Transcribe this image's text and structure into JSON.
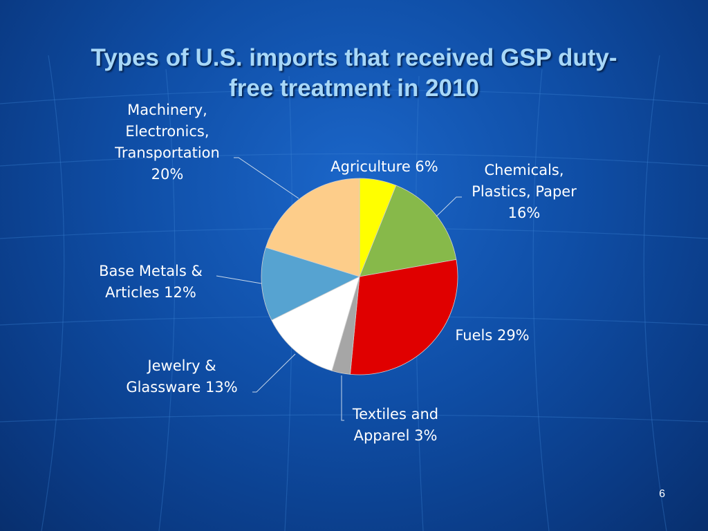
{
  "slide": {
    "title_line1": "Types of U.S. imports that received GSP duty-",
    "title_line2": "free treatment in 2010",
    "page_number": "6"
  },
  "chart_data": {
    "type": "pie",
    "title": "Types of U.S. imports that received GSP duty-free treatment in 2010",
    "unit": "%",
    "slices": [
      {
        "label": "Agriculture",
        "value": 6,
        "color": "#ffff00",
        "label_lines": [
          "Agriculture 6%"
        ]
      },
      {
        "label": "Chemicals, Plastics, Paper",
        "value": 16,
        "color": "#87b94a",
        "label_lines": [
          "Chemicals,",
          "Plastics, Paper",
          "16%"
        ]
      },
      {
        "label": "Fuels",
        "value": 29,
        "color": "#e00000",
        "label_lines": [
          "Fuels 29%"
        ]
      },
      {
        "label": "Textiles and Apparel",
        "value": 3,
        "color": "#a6a6a6",
        "label_lines": [
          "Textiles and",
          "Apparel 3%"
        ]
      },
      {
        "label": "Jewelry & Glassware",
        "value": 13,
        "color": "#ffffff",
        "label_lines": [
          "Jewelry  &",
          "Glassware 13%"
        ]
      },
      {
        "label": "Base Metals & Articles",
        "value": 12,
        "color": "#56a3d1",
        "label_lines": [
          "Base Metals &",
          "Articles 12%"
        ]
      },
      {
        "label": "Machinery, Electronics, Transportation",
        "value": 20,
        "color": "#fdcd8a",
        "label_lines": [
          "Machinery,",
          "Electronics,",
          "Transportation",
          "20%"
        ]
      }
    ]
  }
}
